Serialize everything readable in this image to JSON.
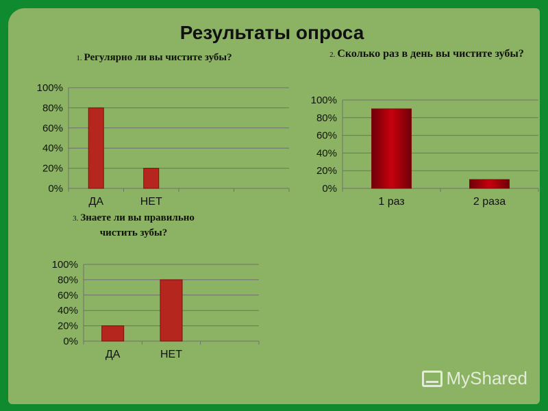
{
  "slide": {
    "title": "Результаты опроса"
  },
  "watermark": {
    "text": "MyShared"
  },
  "chart_data": [
    {
      "type": "bar",
      "number": "1.",
      "title": "Регулярно ли вы чистите зубы?",
      "categories": [
        "ДА",
        "НЕТ"
      ],
      "values": [
        80,
        20
      ],
      "yticks": [
        "0%",
        "20%",
        "40%",
        "60%",
        "80%",
        "100%"
      ],
      "ylim": [
        0,
        100
      ],
      "grid": true,
      "color": "#b5261e"
    },
    {
      "type": "bar",
      "number": "2.",
      "title": "Сколько раз в день вы чистите зубы?",
      "categories": [
        "1 раз",
        "2 раза"
      ],
      "values": [
        90,
        10
      ],
      "yticks": [
        "0%",
        "20%",
        "40%",
        "60%",
        "80%",
        "100%"
      ],
      "ylim": [
        0,
        100
      ],
      "grid": true,
      "color": "#c8000e"
    },
    {
      "type": "bar",
      "number": "3.",
      "title": "Знаете ли вы правильно чистить зубы?",
      "categories": [
        "ДА",
        "НЕТ"
      ],
      "values": [
        20,
        80
      ],
      "yticks": [
        "0%",
        "20%",
        "40%",
        "60%",
        "80%",
        "100%"
      ],
      "ylim": [
        0,
        100
      ],
      "grid": true,
      "color": "#b5261e"
    }
  ]
}
